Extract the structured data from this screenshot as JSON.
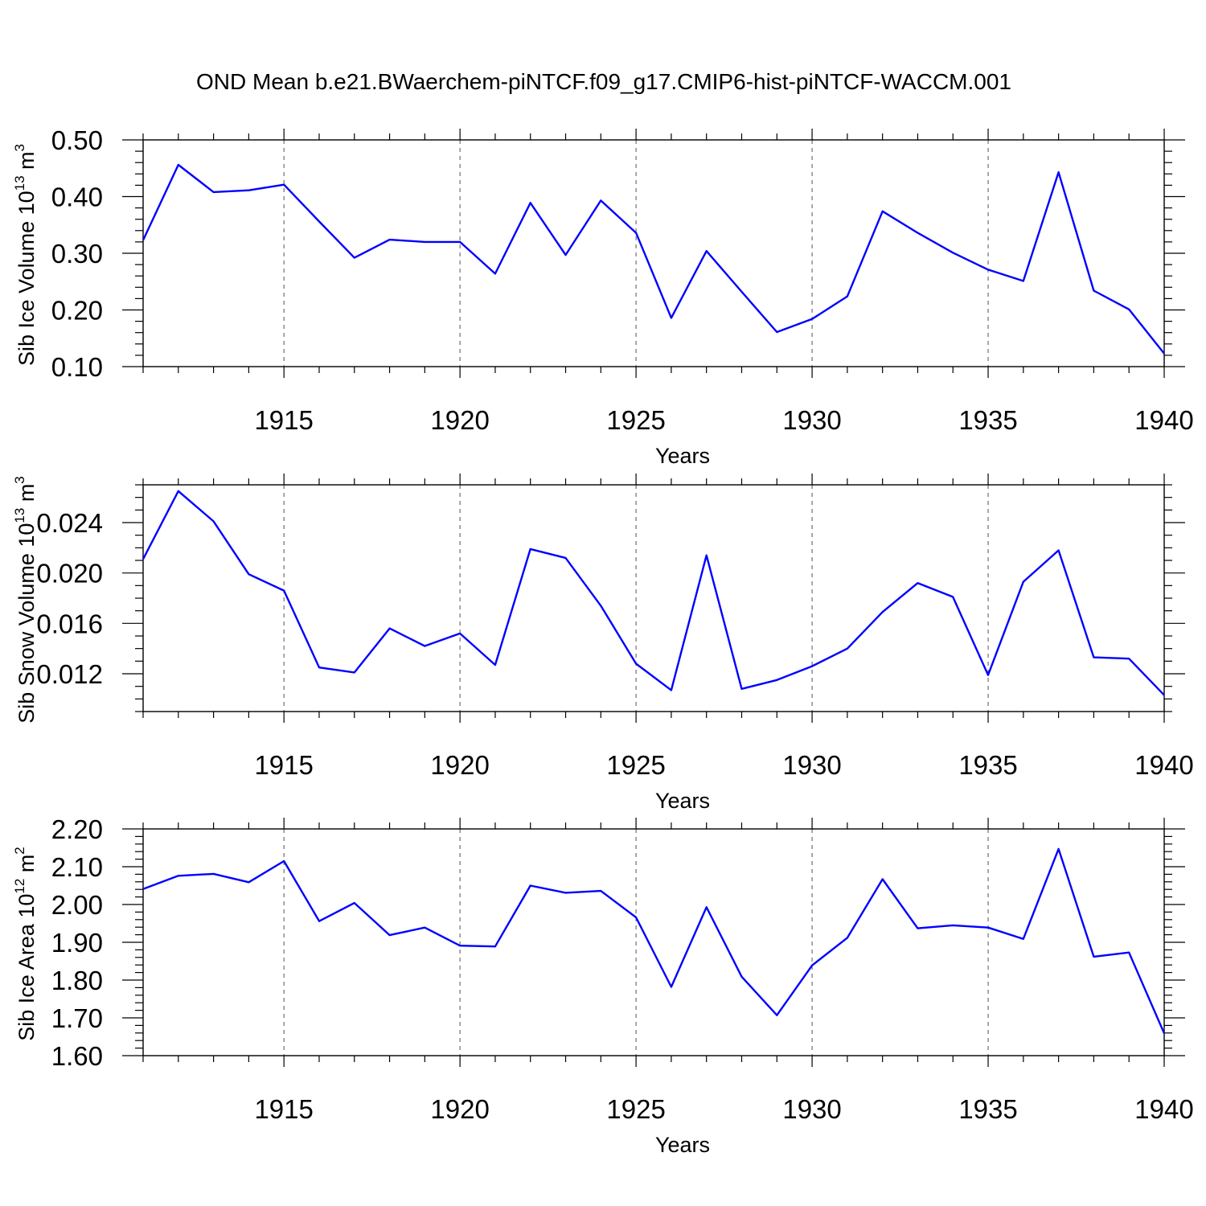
{
  "title": "OND Mean b.e21.BWaerchem-piNTCF.f09_g17.CMIP6-hist-piNTCF-WACCM.001",
  "line_color": "#0000ff",
  "chart_data": [
    {
      "type": "line",
      "xlabel": "Years",
      "ylabel": {
        "text": "Sib Ice Volume 10",
        "exp": "13",
        "unit": " m",
        "unit_exp": "3"
      },
      "xlim": [
        1911,
        1940
      ],
      "ylim": [
        0.1,
        0.5
      ],
      "x_ticks": [
        1915,
        1920,
        1925,
        1930,
        1935,
        1940
      ],
      "y_ticks": [
        0.1,
        0.2,
        0.3,
        0.4,
        0.5
      ],
      "y_tick_labels": [
        "0.10",
        "0.20",
        "0.30",
        "0.40",
        "0.50"
      ],
      "y_minor_step": 0.02,
      "grid": "vertical dashed at major x ticks",
      "x": [
        1911,
        1912,
        1913,
        1914,
        1915,
        1916,
        1917,
        1918,
        1919,
        1920,
        1921,
        1922,
        1923,
        1924,
        1925,
        1926,
        1927,
        1928,
        1929,
        1930,
        1931,
        1932,
        1933,
        1934,
        1935,
        1936,
        1937,
        1938,
        1939,
        1940
      ],
      "values": [
        0.323,
        0.456,
        0.408,
        0.411,
        0.421,
        0.356,
        0.292,
        0.324,
        0.32,
        0.32,
        0.264,
        0.389,
        0.297,
        0.393,
        0.336,
        0.186,
        0.304,
        0.232,
        0.161,
        0.184,
        0.224,
        0.374,
        0.336,
        0.301,
        0.271,
        0.251,
        0.443,
        0.234,
        0.201,
        0.123
      ]
    },
    {
      "type": "line",
      "xlabel": "Years",
      "ylabel": {
        "text": "Sib Snow Volume 10",
        "exp": "13",
        "unit": " m",
        "unit_exp": "3"
      },
      "xlim": [
        1911,
        1940
      ],
      "ylim": [
        0.009,
        0.027
      ],
      "x_ticks": [
        1915,
        1920,
        1925,
        1930,
        1935,
        1940
      ],
      "y_ticks": [
        0.012,
        0.016,
        0.02,
        0.024
      ],
      "y_tick_labels": [
        "0.012",
        "0.016",
        "0.020",
        "0.024"
      ],
      "y_minor_step": 0.001,
      "grid": "vertical dashed at major x ticks",
      "x": [
        1911,
        1912,
        1913,
        1914,
        1915,
        1916,
        1917,
        1918,
        1919,
        1920,
        1921,
        1922,
        1923,
        1924,
        1925,
        1926,
        1927,
        1928,
        1929,
        1930,
        1931,
        1932,
        1933,
        1934,
        1935,
        1936,
        1937,
        1938,
        1939,
        1940
      ],
      "values": [
        0.0211,
        0.0265,
        0.0241,
        0.0199,
        0.0186,
        0.0125,
        0.0121,
        0.0156,
        0.0142,
        0.0152,
        0.0127,
        0.0219,
        0.0212,
        0.0174,
        0.0128,
        0.0107,
        0.0214,
        0.0108,
        0.0115,
        0.0126,
        0.014,
        0.0169,
        0.0192,
        0.0181,
        0.0119,
        0.0193,
        0.0218,
        0.0133,
        0.0132,
        0.0103
      ]
    },
    {
      "type": "line",
      "xlabel": "Years",
      "ylabel": {
        "text": "Sib Ice Area 10",
        "exp": "12",
        "unit": " m",
        "unit_exp": "2"
      },
      "xlim": [
        1911,
        1940
      ],
      "ylim": [
        1.6,
        2.2
      ],
      "x_ticks": [
        1915,
        1920,
        1925,
        1930,
        1935,
        1940
      ],
      "y_ticks": [
        1.6,
        1.7,
        1.8,
        1.9,
        2.0,
        2.1,
        2.2
      ],
      "y_tick_labels": [
        "1.60",
        "1.70",
        "1.80",
        "1.90",
        "2.00",
        "2.10",
        "2.20"
      ],
      "y_minor_step": 0.02,
      "grid": "vertical dashed at major x ticks",
      "x": [
        1911,
        1912,
        1913,
        1914,
        1915,
        1916,
        1917,
        1918,
        1919,
        1920,
        1921,
        1922,
        1923,
        1924,
        1925,
        1926,
        1927,
        1928,
        1929,
        1930,
        1931,
        1932,
        1933,
        1934,
        1935,
        1936,
        1937,
        1938,
        1939,
        1940
      ],
      "values": [
        2.041,
        2.076,
        2.081,
        2.059,
        2.115,
        1.956,
        2.004,
        1.919,
        1.939,
        1.891,
        1.889,
        2.05,
        2.031,
        2.036,
        1.966,
        1.782,
        1.993,
        1.809,
        1.707,
        1.839,
        1.912,
        2.067,
        1.937,
        1.945,
        1.939,
        1.909,
        2.147,
        1.862,
        1.873,
        1.659
      ]
    }
  ]
}
